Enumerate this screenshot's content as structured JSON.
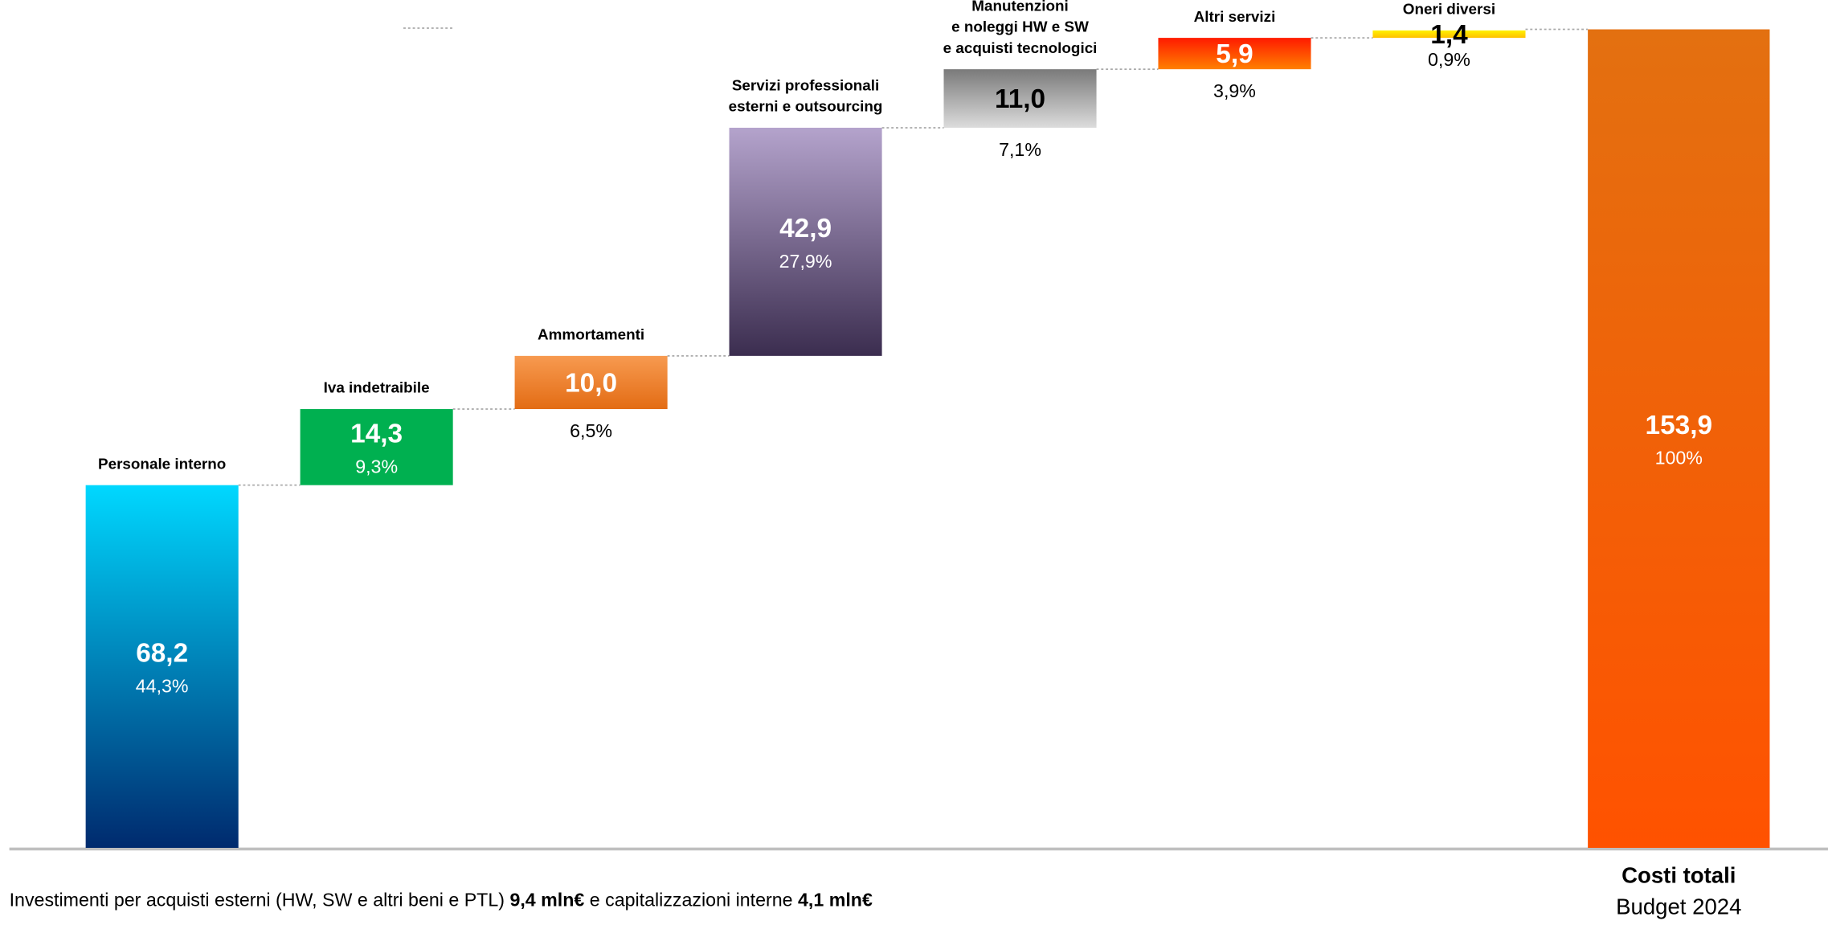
{
  "chart_data": {
    "type": "waterfall",
    "categories": [
      [
        "Personale interno"
      ],
      [
        "Iva indetraibile"
      ],
      [
        "Ammortamenti"
      ],
      [
        "Servizi professionali",
        "esterni e outsourcing"
      ],
      [
        "Manutenzioni",
        "e noleggi HW e SW",
        "e acquisti tecnologici"
      ],
      [
        "Altri servizi"
      ],
      [
        "Oneri diversi"
      ],
      [
        "Costi totali",
        "Budget 2024"
      ]
    ],
    "values": [
      68.2,
      14.3,
      10.0,
      42.9,
      11.0,
      5.9,
      1.4,
      153.9
    ],
    "value_labels": [
      "68,2",
      "14,3",
      "10,0",
      "42,9",
      "11,0",
      "5,9",
      "1,4",
      "153,9"
    ],
    "share_labels": [
      "44,3%",
      "9,3%",
      "6,5%",
      "27,9%",
      "7,1%",
      "3,9%",
      "0,9%",
      "100%"
    ],
    "totals": [
      false,
      false,
      false,
      false,
      false,
      false,
      false,
      true
    ],
    "colors": [
      [
        "#00d8ff",
        "#002a6e"
      ],
      [
        "#00b050",
        "#00b050"
      ],
      [
        "#f79a50",
        "#e36c14"
      ],
      [
        "#b4a3cc",
        "#3b2d4f"
      ],
      [
        "#7a7a7a",
        "#dcdcdc"
      ],
      [
        "#ff1a00",
        "#ff8000"
      ],
      [
        "#fff200",
        "#ffc000"
      ],
      [
        "#e37010",
        "#ff5200"
      ]
    ],
    "text_colors": [
      "#ffffff",
      "#ffffff",
      "#ffffff",
      "#ffffff",
      "#000000",
      "#ffffff",
      "#000000",
      "#ffffff"
    ],
    "ylim": [
      0,
      155
    ],
    "footnote": [
      "Investimenti per acquisti esterni (HW, SW e altri beni e PTL) ",
      "9,4 mln€",
      " e capitalizzazioni interne ",
      "4,1 mln€"
    ]
  }
}
